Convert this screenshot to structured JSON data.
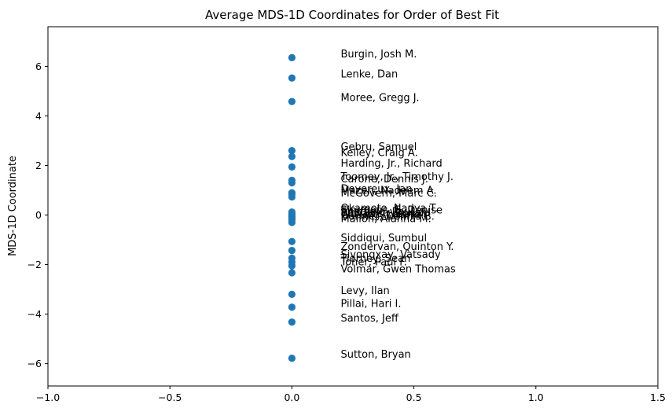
{
  "chart_data": {
    "type": "scatter",
    "title": "Average MDS-1D Coordinates for Order of Best Fit",
    "xlabel": "",
    "ylabel": "MDS-1D Coordinate",
    "xlim": [
      -1.0,
      1.5
    ],
    "ylim": [
      -6.9,
      7.6
    ],
    "xticks": [
      {
        "value": -1.0,
        "label": "−1.0"
      },
      {
        "value": -0.5,
        "label": "−0.5"
      },
      {
        "value": 0.0,
        "label": "0.0"
      },
      {
        "value": 0.5,
        "label": "0.5"
      },
      {
        "value": 1.0,
        "label": "1.0"
      },
      {
        "value": 1.5,
        "label": "1.5"
      }
    ],
    "yticks": [
      {
        "value": -6,
        "label": "−6"
      },
      {
        "value": -4,
        "label": "−4"
      },
      {
        "value": -2,
        "label": "−2"
      },
      {
        "value": 0,
        "label": "0"
      },
      {
        "value": 2,
        "label": "2"
      },
      {
        "value": 4,
        "label": "4"
      },
      {
        "value": 6,
        "label": "6"
      }
    ],
    "grid": false,
    "marker_color": "#1f77b4",
    "points": [
      {
        "name": "Burgin, Josh M.",
        "x": 0.0,
        "y": 6.35
      },
      {
        "name": "Lenke, Dan",
        "x": 0.0,
        "y": 5.53
      },
      {
        "name": "Moree, Gregg J.",
        "x": 0.0,
        "y": 4.58
      },
      {
        "name": "Gebru, Samuel",
        "x": 0.0,
        "y": 2.6
      },
      {
        "name": "Kelley, Craig A.",
        "x": 0.0,
        "y": 2.36
      },
      {
        "name": "Harding, Jr., Richard",
        "x": 0.0,
        "y": 1.94
      },
      {
        "name": "Toomey, Jr., Timothy J.",
        "x": 0.0,
        "y": 1.4
      },
      {
        "name": "Carone, Dennis J.",
        "x": 0.0,
        "y": 1.3
      },
      {
        "name": "Devereux, Jan",
        "x": 0.0,
        "y": 0.9
      },
      {
        "name": "Mazen, Nadeem A.",
        "x": 0.0,
        "y": 0.84
      },
      {
        "name": "McGovern, Marc C.",
        "x": 0.0,
        "y": 0.73
      },
      {
        "name": "Okamoto, Nadya T.",
        "x": 0.0,
        "y": 0.12
      },
      {
        "name": "Simmons, E. Denise",
        "x": 0.0,
        "y": 0.05
      },
      {
        "name": "Sheffield, Paul",
        "x": 0.0,
        "y": -0.02
      },
      {
        "name": "Benjamin, Ronald",
        "x": 0.0,
        "y": -0.06
      },
      {
        "name": "Williams, Vernon",
        "x": 0.0,
        "y": -0.1
      },
      {
        "name": "Cheung, Leland",
        "x": 0.0,
        "y": -0.14
      },
      {
        "name": "Dormer, Dennis B.",
        "x": 0.0,
        "y": -0.2
      },
      {
        "name": "Mallon, Alanna M.",
        "x": 0.0,
        "y": -0.3
      },
      {
        "name": "Siddiqui, Sumbul",
        "x": 0.0,
        "y": -1.07
      },
      {
        "name": "Zondervan, Quinton Y.",
        "x": 0.0,
        "y": -1.43
      },
      {
        "name": "Sivongxay, Vatsady",
        "x": 0.0,
        "y": -1.74
      },
      {
        "name": "Tierney, Sean",
        "x": 0.0,
        "y": -1.9
      },
      {
        "name": "Toner, Paul F.",
        "x": 0.0,
        "y": -2.05
      },
      {
        "name": "Volmar, Gwen Thomas",
        "x": 0.0,
        "y": -2.33
      },
      {
        "name": "Levy, Ilan",
        "x": 0.0,
        "y": -3.2
      },
      {
        "name": "Pillai, Hari I.",
        "x": 0.0,
        "y": -3.72
      },
      {
        "name": "Santos, Jeff",
        "x": 0.0,
        "y": -4.32
      },
      {
        "name": "Sutton, Bryan",
        "x": 0.0,
        "y": -5.78
      }
    ]
  }
}
